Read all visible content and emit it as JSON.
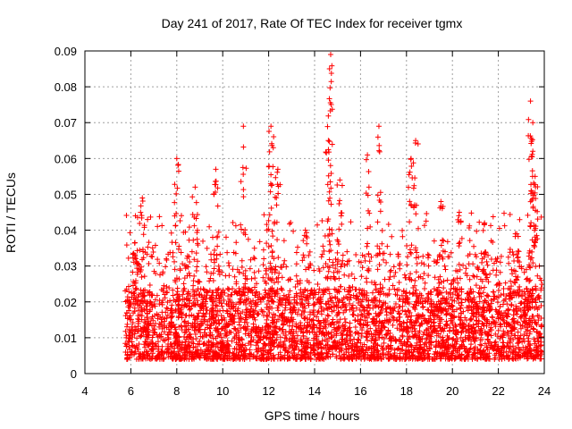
{
  "chart_data": {
    "type": "scatter",
    "title": "Day 241 of 2017, Rate Of TEC Index for receiver tgmx",
    "xlabel": "GPS time / hours",
    "ylabel": "ROTI / TECUs",
    "xlim": [
      4,
      24
    ],
    "ylim": [
      0,
      0.09
    ],
    "xticks": [
      4,
      6,
      8,
      10,
      12,
      14,
      16,
      18,
      20,
      22,
      24
    ],
    "yticks": [
      0,
      0.01,
      0.02,
      0.03,
      0.04,
      0.05,
      0.06,
      0.07,
      0.08,
      0.09
    ],
    "grid": true,
    "marker": "+",
    "series": [
      {
        "name": "ROTI",
        "color": "#ff0000",
        "data_span": [
          5.75,
          23.9
        ],
        "points_description": "dense band mostly between 0.005 and 0.03 TECU with sparse spikes",
        "peaks": [
          {
            "x": 6.2,
            "y": 0.044
          },
          {
            "x": 6.5,
            "y": 0.049
          },
          {
            "x": 8.0,
            "y": 0.06
          },
          {
            "x": 8.8,
            "y": 0.052
          },
          {
            "x": 9.7,
            "y": 0.057
          },
          {
            "x": 10.9,
            "y": 0.069
          },
          {
            "x": 12.1,
            "y": 0.069
          },
          {
            "x": 12.2,
            "y": 0.063
          },
          {
            "x": 12.4,
            "y": 0.057
          },
          {
            "x": 13.6,
            "y": 0.04
          },
          {
            "x": 14.6,
            "y": 0.065
          },
          {
            "x": 14.7,
            "y": 0.089
          },
          {
            "x": 14.65,
            "y": 0.085
          },
          {
            "x": 15.1,
            "y": 0.054
          },
          {
            "x": 16.3,
            "y": 0.061
          },
          {
            "x": 16.8,
            "y": 0.069
          },
          {
            "x": 18.2,
            "y": 0.06
          },
          {
            "x": 18.4,
            "y": 0.065
          },
          {
            "x": 19.5,
            "y": 0.048
          },
          {
            "x": 20.3,
            "y": 0.045
          },
          {
            "x": 21.4,
            "y": 0.042
          },
          {
            "x": 22.8,
            "y": 0.039
          },
          {
            "x": 23.4,
            "y": 0.076
          },
          {
            "x": 23.5,
            "y": 0.07
          },
          {
            "x": 23.5,
            "y": 0.062
          },
          {
            "x": 23.6,
            "y": 0.055
          }
        ]
      }
    ]
  }
}
